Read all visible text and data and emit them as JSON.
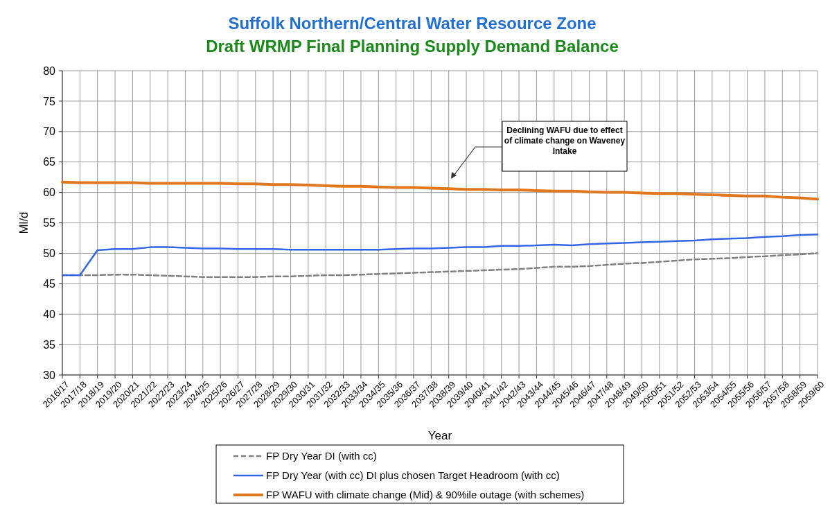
{
  "chart_data": {
    "type": "line",
    "title": "Suffolk Northern/Central Water Resource Zone",
    "subtitle": "Draft WRMP Final Planning Supply Demand Balance",
    "xlabel": "Year",
    "ylabel": "Ml/d",
    "categories": [
      "2016/17",
      "2017/18",
      "2018/19",
      "2019/20",
      "2020/21",
      "2021/22",
      "2022/23",
      "2023/24",
      "2024/25",
      "2025/26",
      "2026/27",
      "2027/28",
      "2028/29",
      "2029/30",
      "2030/31",
      "2031/32",
      "2032/33",
      "2033/34",
      "2034/35",
      "2035/36",
      "2036/37",
      "2037/38",
      "2038/39",
      "2039/40",
      "2040/41",
      "2041/42",
      "2042/43",
      "2043/44",
      "2044/45",
      "2045/46",
      "2046/47",
      "2047/48",
      "2048/49",
      "2049/50",
      "2050/51",
      "2051/52",
      "2052/53",
      "2053/54",
      "2054/55",
      "2055/56",
      "2056/57",
      "2057/58",
      "2058/59",
      "2059/60"
    ],
    "series": [
      {
        "name": "FP Dry Year DI (with cc)",
        "color": "#808080",
        "line_style": "dashed",
        "values": [
          46.4,
          46.4,
          46.4,
          46.5,
          46.5,
          46.4,
          46.3,
          46.2,
          46.1,
          46.1,
          46.1,
          46.1,
          46.2,
          46.2,
          46.3,
          46.4,
          46.4,
          46.5,
          46.6,
          46.7,
          46.8,
          46.9,
          47.0,
          47.1,
          47.2,
          47.3,
          47.4,
          47.6,
          47.8,
          47.8,
          47.9,
          48.1,
          48.3,
          48.4,
          48.6,
          48.8,
          49.0,
          49.1,
          49.2,
          49.4,
          49.5,
          49.7,
          49.8,
          50.0
        ]
      },
      {
        "name": "FP Dry Year (with cc) DI plus chosen Target Headroom (with cc)",
        "color": "#3366e6",
        "line_style": "solid",
        "values": [
          46.4,
          46.4,
          50.5,
          50.7,
          50.7,
          51.0,
          51.0,
          50.9,
          50.8,
          50.8,
          50.7,
          50.7,
          50.7,
          50.6,
          50.6,
          50.6,
          50.6,
          50.6,
          50.6,
          50.7,
          50.8,
          50.8,
          50.9,
          51.0,
          51.0,
          51.2,
          51.2,
          51.3,
          51.4,
          51.3,
          51.5,
          51.6,
          51.7,
          51.8,
          51.9,
          52.0,
          52.1,
          52.3,
          52.4,
          52.5,
          52.7,
          52.8,
          53.0,
          53.1
        ]
      },
      {
        "name": "FP WAFU with climate change (Mid) & 90%ile outage (with schemes)",
        "color": "#e07820",
        "line_style": "solid",
        "values": [
          61.7,
          61.6,
          61.6,
          61.6,
          61.6,
          61.5,
          61.5,
          61.5,
          61.5,
          61.5,
          61.4,
          61.4,
          61.3,
          61.3,
          61.2,
          61.1,
          61.0,
          61.0,
          60.9,
          60.8,
          60.8,
          60.7,
          60.6,
          60.5,
          60.5,
          60.4,
          60.4,
          60.3,
          60.2,
          60.2,
          60.1,
          60.0,
          60.0,
          59.9,
          59.8,
          59.8,
          59.7,
          59.6,
          59.5,
          59.4,
          59.4,
          59.2,
          59.1,
          58.9
        ]
      }
    ],
    "ylim": [
      30,
      80
    ],
    "yticks": [
      30,
      35,
      40,
      45,
      50,
      55,
      60,
      65,
      70,
      75,
      80
    ],
    "grid": true,
    "legend": "bottom",
    "marker": "none",
    "annotations": [
      "Declining WAFU due to effect of climate change on Waveney Intake"
    ]
  }
}
